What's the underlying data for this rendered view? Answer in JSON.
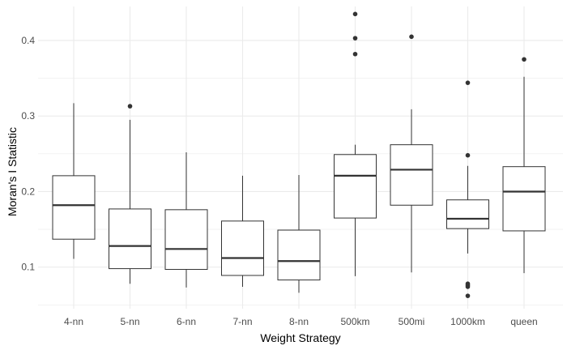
{
  "chart_data": {
    "type": "boxplot",
    "xlabel": "Weight Strategy",
    "ylabel": "Moran's I Statistic",
    "ylim": [
      0.045,
      0.445
    ],
    "y_ticks": [
      0.1,
      0.2,
      0.3,
      0.4
    ],
    "y_tick_labels": [
      "0.1",
      "0.2",
      "0.3",
      "0.4"
    ],
    "grid": true,
    "categories": [
      "4-nn",
      "5-nn",
      "6-nn",
      "7-nn",
      "8-nn",
      "500km",
      "500mi",
      "1000km",
      "queen"
    ],
    "boxes": [
      {
        "category": "4-nn",
        "whisker_low": 0.111,
        "q1": 0.137,
        "median": 0.182,
        "q3": 0.221,
        "whisker_high": 0.317,
        "outliers": []
      },
      {
        "category": "5-nn",
        "whisker_low": 0.078,
        "q1": 0.098,
        "median": 0.128,
        "q3": 0.177,
        "whisker_high": 0.295,
        "outliers": [
          0.313
        ]
      },
      {
        "category": "6-nn",
        "whisker_low": 0.073,
        "q1": 0.097,
        "median": 0.124,
        "q3": 0.176,
        "whisker_high": 0.252,
        "outliers": []
      },
      {
        "category": "7-nn",
        "whisker_low": 0.074,
        "q1": 0.089,
        "median": 0.112,
        "q3": 0.161,
        "whisker_high": 0.221,
        "outliers": []
      },
      {
        "category": "8-nn",
        "whisker_low": 0.066,
        "q1": 0.083,
        "median": 0.108,
        "q3": 0.149,
        "whisker_high": 0.222,
        "outliers": []
      },
      {
        "category": "500km",
        "whisker_low": 0.088,
        "q1": 0.165,
        "median": 0.221,
        "q3": 0.249,
        "whisker_high": 0.262,
        "outliers": [
          0.382,
          0.403,
          0.435
        ]
      },
      {
        "category": "500mi",
        "whisker_low": 0.093,
        "q1": 0.182,
        "median": 0.229,
        "q3": 0.262,
        "whisker_high": 0.309,
        "outliers": [
          0.405
        ]
      },
      {
        "category": "1000km",
        "whisker_low": 0.118,
        "q1": 0.151,
        "median": 0.164,
        "q3": 0.189,
        "whisker_high": 0.234,
        "outliers": [
          0.062,
          0.074,
          0.076,
          0.078,
          0.248,
          0.344
        ]
      },
      {
        "category": "queen",
        "whisker_low": 0.092,
        "q1": 0.148,
        "median": 0.2,
        "q3": 0.233,
        "whisker_high": 0.352,
        "outliers": [
          0.375
        ]
      }
    ],
    "colors": {
      "grid": "#ebebeb",
      "box_stroke": "#333333",
      "box_fill": "#ffffff",
      "point": "#333333",
      "tick_text": "#4d4d4d",
      "title_text": "#000000"
    }
  }
}
